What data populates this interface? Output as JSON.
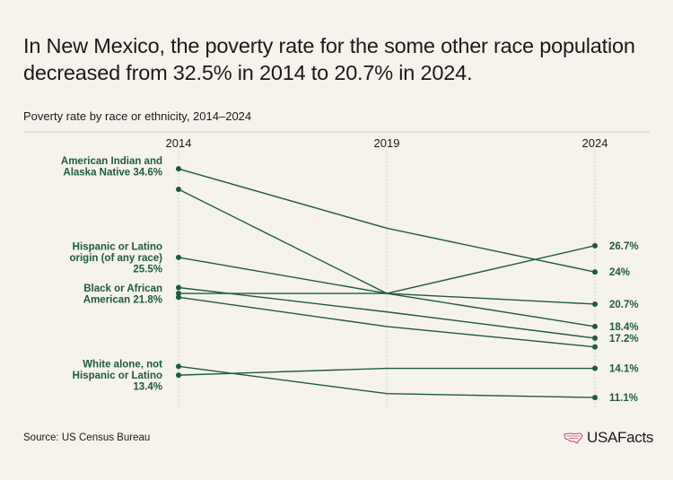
{
  "title": "In New Mexico, the poverty rate for the some other race population decreased from 32.5% in 2014 to 20.7% in 2024.",
  "subtitle": "Poverty rate by race or ethnicity, 2014–2024",
  "source": "Source: US Census Bureau",
  "logo_text": "USAFacts",
  "colors": {
    "line": "#1f5a3b",
    "background": "#f6f3ec",
    "gridline": "#cfcfcf"
  },
  "chart_data": {
    "type": "line",
    "x": [
      "2014",
      "2019",
      "2024"
    ],
    "ylim": [
      10,
      36
    ],
    "grid": true,
    "series": [
      {
        "values": [
          34.6,
          28.5,
          24.0
        ]
      },
      {
        "values": [
          32.5,
          21.8,
          20.7
        ]
      },
      {
        "values": [
          25.5,
          21.8,
          18.4
        ]
      },
      {
        "values": [
          22.4,
          19.9,
          17.2
        ]
      },
      {
        "values": [
          21.8,
          21.8,
          26.7
        ]
      },
      {
        "values": [
          21.4,
          18.4,
          16.3
        ]
      },
      {
        "values": [
          14.3,
          11.5,
          11.1
        ]
      },
      {
        "values": [
          13.4,
          14.1,
          14.1
        ]
      }
    ],
    "left_labels": [
      {
        "lines": [
          "American Indian and",
          "Alaska Native 34.6%"
        ],
        "value": 34.6
      },
      {
        "lines": [
          "Hispanic or Latino",
          "origin (of any race)",
          "25.5%"
        ],
        "value": 25.5
      },
      {
        "lines": [
          "Black or African",
          "American 21.8%"
        ],
        "value": 21.8
      },
      {
        "lines": [
          "White alone, not",
          "Hispanic or Latino",
          "13.4%"
        ],
        "value": 13.4
      }
    ],
    "right_labels": [
      {
        "text": "26.7%",
        "value": 26.7
      },
      {
        "text": "24%",
        "value": 24.0
      },
      {
        "text": "20.7%",
        "value": 20.7
      },
      {
        "text": "18.4%",
        "value": 18.4
      },
      {
        "text": "17.2%",
        "value": 17.2
      },
      {
        "text": "14.1%",
        "value": 14.1
      },
      {
        "text": "11.1%",
        "value": 11.1
      }
    ]
  }
}
